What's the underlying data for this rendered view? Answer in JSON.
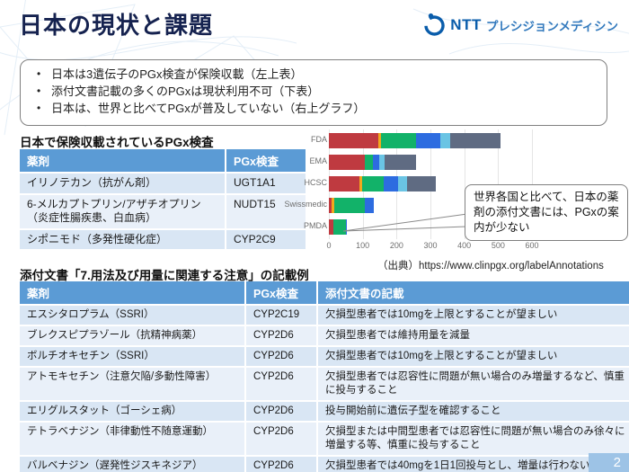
{
  "header": {
    "title": "日本の現状と課題",
    "logo": {
      "ntt": "NTT",
      "brand": "プレシジョンメディシン"
    }
  },
  "summary": {
    "bullets": [
      "日本は3遺伝子のPGx検査が保険収載（左上表）",
      "添付文書記載の多くのPGxは現状利用不可（下表）",
      "日本は、世界と比べてPGxが普及していない（右上グラフ）"
    ]
  },
  "insurance_table": {
    "title": "日本で保険収載されているPGx検査",
    "columns": [
      "薬剤",
      "PGx検査"
    ],
    "rows": [
      [
        "イリノテカン（抗がん剤）",
        "UGT1A1"
      ],
      [
        "6-メルカプトプリン/アザチオプリン（炎症性腸疾患、白血病）",
        "NUDT15"
      ],
      [
        "シポニモド（多発性硬化症）",
        "CYP2C9"
      ]
    ]
  },
  "chart_data": {
    "type": "bar",
    "subtype": "horizontal-stacked",
    "categories": [
      "FDA",
      "EMA",
      "HCSC",
      "Swissmedic",
      "PMDA"
    ],
    "series": [
      {
        "name": "red",
        "color": "#bf3a40",
        "values": [
          145,
          105,
          90,
          9,
          12
        ]
      },
      {
        "name": "yellow",
        "color": "#f2a81d",
        "values": [
          8,
          0,
          7,
          6,
          0
        ]
      },
      {
        "name": "green",
        "color": "#12b269",
        "values": [
          105,
          25,
          65,
          91,
          38
        ]
      },
      {
        "name": "blue",
        "color": "#2d6ce0",
        "values": [
          70,
          18,
          43,
          26,
          4
        ]
      },
      {
        "name": "lightblue",
        "color": "#6ac4e4",
        "values": [
          30,
          18,
          26,
          0,
          0
        ]
      },
      {
        "name": "gray",
        "color": "#5f6b82",
        "values": [
          150,
          92,
          86,
          0,
          0
        ]
      }
    ],
    "totals": {
      "FDA": 508,
      "EMA": 258,
      "HCSC": 317,
      "Swissmedic": 132,
      "PMDA": 54
    },
    "x_ticks": [
      0,
      100,
      200,
      300,
      400,
      500,
      600
    ],
    "xlim": [
      0,
      600
    ],
    "grid": true,
    "legend": "none",
    "title": "",
    "xlabel": "",
    "ylabel": ""
  },
  "callout": {
    "text": "世界各国と比べて、日本の薬剤の添付文書には、PGxの案内が少ない"
  },
  "source": {
    "label": "（出典）",
    "url": "https://www.clinpgx.org/labelAnnotations"
  },
  "label_table": {
    "title": "添付文書「7.用法及び用量に関連する注意」の記載例",
    "columns": [
      "薬剤",
      "PGx検査",
      "添付文書の記載"
    ],
    "rows": [
      [
        "エスシタロプラム（SSRI）",
        "CYP2C19",
        "欠損型患者では10mgを上限とすることが望ましい"
      ],
      [
        "ブレクスピプラゾール（抗精神病薬）",
        "CYP2D6",
        "欠損型患者では維持用量を減量"
      ],
      [
        "ボルチオキセチン（SSRI）",
        "CYP2D6",
        "欠損型患者では10mgを上限とすることが望ましい"
      ],
      [
        "アトモキセチン（注意欠陥/多動性障害）",
        "CYP2D6",
        "欠損型患者では忍容性に問題が無い場合のみ増量するなど、慎重に投与すること"
      ],
      [
        "エリグルスタット（ゴーシェ病）",
        "CYP2D6",
        "投与開始前に遺伝子型を確認すること"
      ],
      [
        "テトラベナジン（非律動性不随意運動）",
        "CYP2D6",
        "欠損型または中間型患者では忍容性に問題が無い場合のみ徐々に増量する等、慎重に投与すること"
      ],
      [
        "バルベナジン（遅発性ジスキネジア）",
        "CYP2D6",
        "欠損型患者では40mgを1日1回投与とし、増量は行わないこと"
      ]
    ]
  },
  "footer": {
    "page_number": "2"
  },
  "ui_colors": {
    "title_navy": "#15224f",
    "table_header_blue": "#5b9bd5",
    "row_band_dark": "#d9e6f4",
    "row_band_light": "#e9f0f9",
    "page_badge_blue": "#9dc3e6",
    "logo_blue": "#0a5dab",
    "logo_brand_blue": "#3279bd",
    "callout_border": "#808080"
  }
}
